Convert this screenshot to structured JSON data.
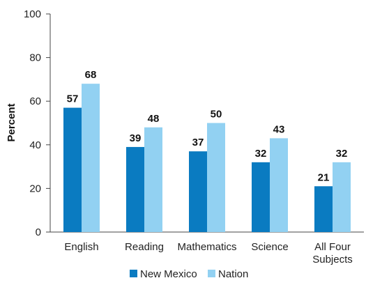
{
  "chart_data": {
    "type": "bar",
    "ylabel": "Percent",
    "xlabel": "",
    "ylim": [
      0,
      100
    ],
    "yticks": [
      0,
      20,
      40,
      60,
      80,
      100
    ],
    "categories": [
      [
        "English"
      ],
      [
        "Reading"
      ],
      [
        "Mathematics"
      ],
      [
        "Science"
      ],
      [
        "All Four",
        "Subjects"
      ]
    ],
    "series": [
      {
        "name": "New Mexico",
        "color": "#0a7bc1",
        "values": [
          57,
          39,
          37,
          32,
          21
        ]
      },
      {
        "name": "Nation",
        "color": "#92d1f2",
        "values": [
          68,
          48,
          50,
          43,
          32
        ]
      }
    ],
    "grid": false,
    "legend_position": "bottom"
  }
}
